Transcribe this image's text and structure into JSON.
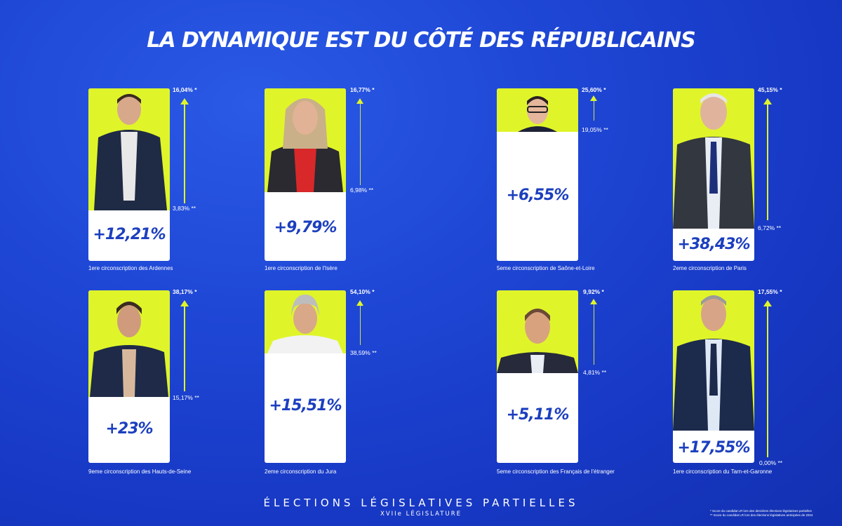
{
  "title": "LA DYNAMIQUE EST DU CÔTÉ DES RÉPUBLICAINS",
  "accent_color": "#dff52a",
  "text_blue": "#1c3fbf",
  "candidates": [
    {
      "gain": "+12,21%",
      "circonscription": "1ere circonscription des Ardennes",
      "score_now": "16,04% *",
      "score_before": "3,83% **"
    },
    {
      "gain": "+9,79%",
      "circonscription": "1ere circonscription de l'Isère",
      "score_now": "16,77% *",
      "score_before": "6,98% **"
    },
    {
      "gain": "+6,55%",
      "circonscription": "5eme circonscription de Saône-et-Loire",
      "score_now": "25,60% *",
      "score_before": "19,05% **"
    },
    {
      "gain": "+38,43%",
      "circonscription": "2eme circonscription de Paris",
      "score_now": "45,15% *",
      "score_before": "6,72% **"
    },
    {
      "gain": "+23%",
      "circonscription": "9eme circonscription des Hauts-de-Seine",
      "score_now": "38,17% *",
      "score_before": "15,17% **"
    },
    {
      "gain": "+15,51%",
      "circonscription": "2eme circonscription du Jura",
      "score_now": "54,10% *",
      "score_before": "38,59% **"
    },
    {
      "gain": "+5,11%",
      "circonscription": "5eme circonscription des Français de l'étranger",
      "score_now": "9,92% *",
      "score_before": "4,81% **"
    },
    {
      "gain": "+17,55%",
      "circonscription": "1ere circonscription du Tarn-et-Garonne",
      "score_now": "17,55% *",
      "score_before": "0,00% **"
    }
  ],
  "footer": {
    "title": "ÉLECTIONS LÉGISLATIVES PARTIELLES",
    "subtitle": "XVIIe LÉGISLATURE",
    "note1": "* Score du candidat LR lors des dernières élections législatives partielles",
    "note2": "** Score du candidat LR lors des élections législatives anticipées de 2024"
  }
}
